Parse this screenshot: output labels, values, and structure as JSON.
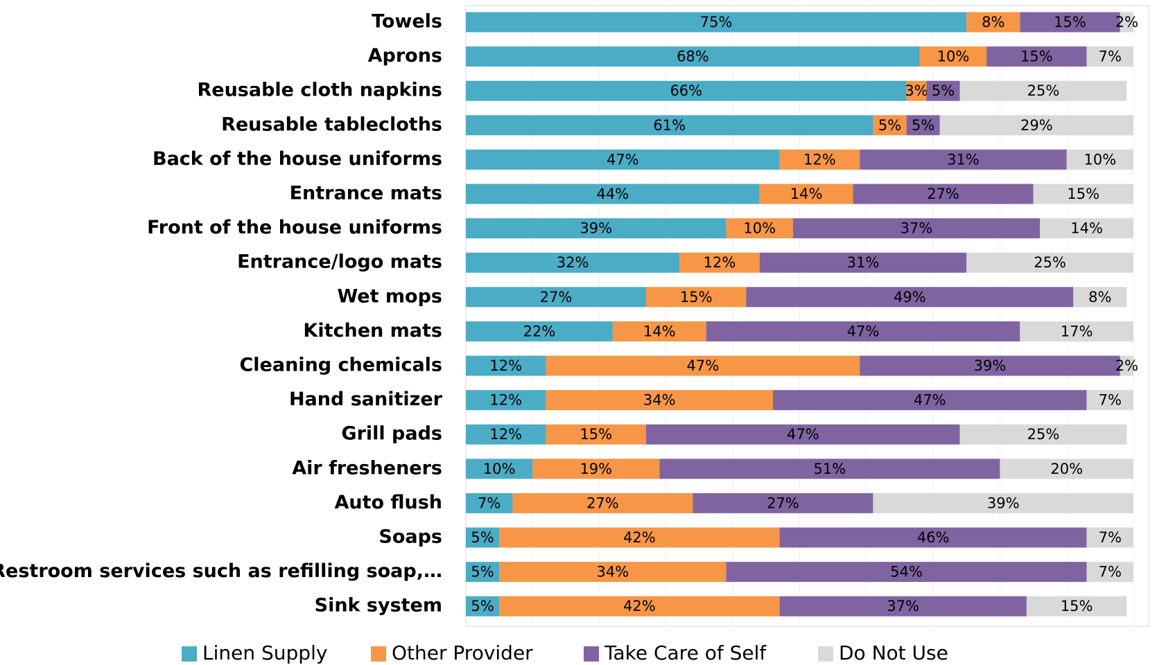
{
  "chart_data": {
    "type": "stacked_bar_horizontal",
    "categories": [
      "Towels",
      "Aprons",
      "Reusable cloth napkins",
      "Reusable tablecloths",
      "Back of the house uniforms",
      "Entrance mats",
      "Front of the house uniforms",
      "Entrance/logo mats",
      "Wet mops",
      "Kitchen mats",
      "Cleaning chemicals",
      "Hand sanitizer",
      "Grill pads",
      "Air fresheners",
      "Auto flush",
      "Soaps",
      "Restroom services such as refilling soap,…",
      "Sink system"
    ],
    "series": [
      {
        "name": "Linen Supply",
        "color": "#4bacc6",
        "values": [
          75,
          68,
          66,
          61,
          47,
          44,
          39,
          32,
          27,
          22,
          12,
          12,
          12,
          10,
          7,
          5,
          5,
          5
        ],
        "value_labels": [
          "75%",
          "68%",
          "66%",
          "61%",
          "47%",
          "44%",
          "39%",
          "32%",
          "27%",
          "22%",
          "12%",
          "12%",
          "12%",
          "10%",
          "7%",
          "5%",
          "5%",
          "5%"
        ]
      },
      {
        "name": "Other Provider",
        "color": "#f79646",
        "values": [
          8,
          10,
          3,
          5,
          12,
          14,
          10,
          12,
          15,
          14,
          47,
          34,
          15,
          19,
          27,
          42,
          34,
          42
        ],
        "value_labels": [
          "8%",
          "10%",
          "3%",
          "5%",
          "12%",
          "14%",
          "10%",
          "12%",
          "15%",
          "14%",
          "47%",
          "34%",
          "15%",
          "19%",
          "27%",
          "42%",
          "34%",
          "42%"
        ]
      },
      {
        "name": "Take Care of Self",
        "color": "#8064a2",
        "values": [
          15,
          15,
          5,
          5,
          31,
          27,
          37,
          31,
          49,
          47,
          39,
          47,
          47,
          51,
          27,
          46,
          54,
          37
        ],
        "value_labels": [
          "15%",
          "15%",
          "5%",
          "5%",
          "31%",
          "27%",
          "37%",
          "31%",
          "49%",
          "47%",
          "39%",
          "47%",
          "47%",
          "51%",
          "27%",
          "46%",
          "54%",
          "37%"
        ]
      },
      {
        "name": "Do Not Use",
        "color": "#d9d9d9",
        "values": [
          2,
          7,
          25,
          29,
          10,
          15,
          14,
          25,
          8,
          17,
          2,
          7,
          25,
          20,
          39,
          7,
          7,
          15
        ],
        "value_labels": [
          "2%",
          "7%",
          "25%",
          "29%",
          "10%",
          "15%",
          "14%",
          "25%",
          "8%",
          "17%",
          "2%",
          "7%",
          "25%",
          "20%",
          "39%",
          "7%",
          "7%",
          "15%"
        ]
      }
    ],
    "xlim": [
      0,
      100
    ],
    "xticks": [
      0,
      10,
      20,
      30,
      40,
      50,
      60,
      70,
      80,
      90,
      100
    ],
    "grid": true,
    "legend": "bottom"
  }
}
